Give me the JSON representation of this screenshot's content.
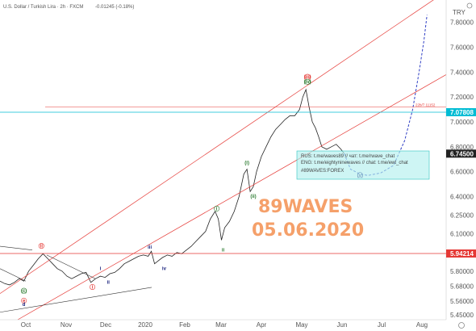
{
  "header": {
    "symbol": "U.S. Dollar / Turkish Lira · 2h · FXCM",
    "change": "-0.01245 (-0.18%)"
  },
  "chart_data": {
    "type": "line",
    "currency": "TRY",
    "ylim": [
      5.41,
      7.98
    ],
    "y_ticks": [
      7.8,
      7.6,
      7.4,
      7.2,
      7.0,
      6.8,
      6.6,
      6.4,
      6.25,
      6.1,
      5.95,
      5.8,
      5.68,
      5.56,
      5.45
    ],
    "y_tick_labels": [
      "7.80000",
      "7.60000",
      "7.40000",
      "7.20000",
      "7.00000",
      "6.80000",
      "6.60000",
      "6.40000",
      "6.25000",
      "6.10000",
      "5.95000",
      "5.80000",
      "5.68000",
      "5.56000",
      "5.45000"
    ],
    "x_labels": [
      "Oct",
      "Nov",
      "Dec",
      "2020",
      "Feb",
      "Mar",
      "Apr",
      "May",
      "Jun",
      "Jul",
      "Aug"
    ],
    "price_tags": [
      {
        "label": "7.07808",
        "value": 7.07808,
        "color": "#00bcd4"
      },
      {
        "label": "6.74500",
        "value": 6.745,
        "color": "#222222"
      },
      {
        "label": "5.94214",
        "value": 5.94214,
        "color": "#e53935"
      }
    ],
    "series": [
      {
        "values": [
          [
            0,
            5.72
          ],
          [
            6,
            5.7
          ],
          [
            12,
            5.69
          ],
          [
            18,
            5.71
          ],
          [
            24,
            5.74
          ],
          [
            30,
            5.72
          ],
          [
            36,
            5.8
          ],
          [
            42,
            5.85
          ],
          [
            48,
            5.9
          ],
          [
            54,
            5.94
          ],
          [
            60,
            5.9
          ],
          [
            66,
            5.86
          ],
          [
            72,
            5.82
          ],
          [
            78,
            5.8
          ],
          [
            84,
            5.76
          ],
          [
            90,
            5.74
          ],
          [
            96,
            5.76
          ],
          [
            102,
            5.78
          ],
          [
            108,
            5.79
          ],
          [
            114,
            5.71
          ],
          [
            120,
            5.74
          ],
          [
            126,
            5.76
          ],
          [
            132,
            5.75
          ],
          [
            138,
            5.78
          ],
          [
            144,
            5.79
          ],
          [
            150,
            5.82
          ],
          [
            156,
            5.86
          ],
          [
            162,
            5.88
          ],
          [
            168,
            5.9
          ],
          [
            174,
            5.92
          ],
          [
            180,
            5.93
          ],
          [
            186,
            5.92
          ],
          [
            190,
            5.96
          ],
          [
            194,
            5.86
          ],
          [
            198,
            5.88
          ],
          [
            204,
            5.91
          ],
          [
            210,
            5.93
          ],
          [
            216,
            5.92
          ],
          [
            222,
            5.95
          ],
          [
            228,
            5.94
          ],
          [
            234,
            5.97
          ],
          [
            240,
            6.0
          ],
          [
            246,
            6.04
          ],
          [
            252,
            6.08
          ],
          [
            258,
            6.12
          ],
          [
            264,
            6.22
          ],
          [
            270,
            6.28
          ],
          [
            274,
            6.22
          ],
          [
            278,
            6.05
          ],
          [
            282,
            6.15
          ],
          [
            288,
            6.2
          ],
          [
            294,
            6.28
          ],
          [
            300,
            6.4
          ],
          [
            306,
            6.58
          ],
          [
            310,
            6.62
          ],
          [
            314,
            6.44
          ],
          [
            318,
            6.48
          ],
          [
            322,
            6.6
          ],
          [
            328,
            6.72
          ],
          [
            334,
            6.8
          ],
          [
            340,
            6.88
          ],
          [
            346,
            6.94
          ],
          [
            352,
            6.98
          ],
          [
            358,
            7.02
          ],
          [
            364,
            7.05
          ],
          [
            370,
            7.05
          ],
          [
            376,
            7.1
          ],
          [
            380,
            7.2
          ],
          [
            384,
            7.26
          ],
          [
            388,
            7.12
          ],
          [
            392,
            7.0
          ],
          [
            396,
            6.95
          ],
          [
            400,
            6.88
          ],
          [
            404,
            6.8
          ],
          [
            410,
            6.78
          ],
          [
            416,
            6.8
          ],
          [
            422,
            6.82
          ],
          [
            428,
            6.78
          ],
          [
            432,
            6.745
          ]
        ]
      },
      {
        "name": "projection",
        "dashed": true,
        "values": [
          [
            432,
            6.745
          ],
          [
            440,
            6.62
          ],
          [
            452,
            6.58
          ],
          [
            462,
            6.57
          ],
          [
            478,
            6.59
          ],
          [
            494,
            6.65
          ],
          [
            508,
            6.85
          ],
          [
            518,
            7.1
          ],
          [
            526,
            7.4
          ],
          [
            532,
            7.65
          ],
          [
            536,
            7.86
          ]
        ]
      }
    ],
    "annotations": {
      "channel": "parallel ascending channel (red)",
      "target_label": "22b/7.11152",
      "wave_labels": [
        "ii",
        "i",
        "i",
        "ii",
        "(c)",
        "e",
        "d",
        "iii",
        "iv",
        "i",
        "ii",
        "(i)",
        "(ii)",
        "(iii)",
        "(iv)",
        "(v)",
        "(i)",
        "v",
        "(ii)"
      ]
    }
  },
  "note_box": {
    "line1": "RUS: t.me/waves89 // чат: t.me/rwave_chat",
    "line2": "ENG: t.me/eightyninewaves // chat: t.me/ewt_chat",
    "line3": "#89WAVES:FOREX"
  },
  "watermark": {
    "title": "89WAVES",
    "date": "05.06.2020",
    "color": "#f5a06a"
  }
}
